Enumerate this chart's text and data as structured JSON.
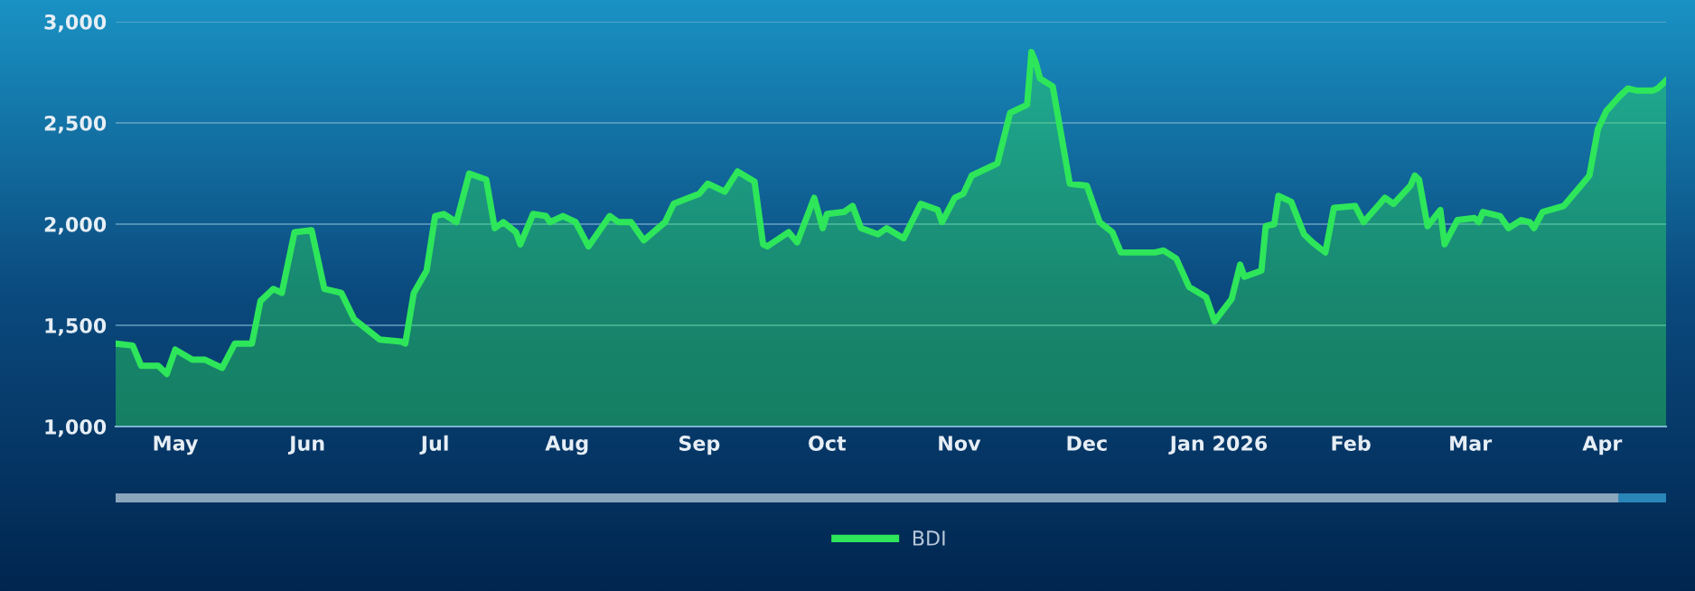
{
  "chart_data": {
    "type": "area",
    "x": [
      "2025-04-17",
      "2025-04-21",
      "2025-04-23",
      "2025-04-27",
      "2025-04-29",
      "2025-05-01",
      "2025-05-05",
      "2025-05-08",
      "2025-05-12",
      "2025-05-15",
      "2025-05-19",
      "2025-05-21",
      "2025-05-24",
      "2025-05-26",
      "2025-05-29",
      "2025-06-02",
      "2025-06-05",
      "2025-06-09",
      "2025-06-12",
      "2025-06-15",
      "2025-06-18",
      "2025-06-23",
      "2025-06-24",
      "2025-06-26",
      "2025-06-29",
      "2025-07-01",
      "2025-07-03",
      "2025-07-06",
      "2025-07-09",
      "2025-07-13",
      "2025-07-15",
      "2025-07-17",
      "2025-07-20",
      "2025-07-21",
      "2025-07-24",
      "2025-07-27",
      "2025-07-28",
      "2025-07-31",
      "2025-08-03",
      "2025-08-06",
      "2025-08-11",
      "2025-08-13",
      "2025-08-16",
      "2025-08-19",
      "2025-08-24",
      "2025-08-26",
      "2025-09-01",
      "2025-09-03",
      "2025-09-07",
      "2025-09-10",
      "2025-09-14",
      "2025-09-16",
      "2025-09-17",
      "2025-09-22",
      "2025-09-24",
      "2025-09-28",
      "2025-09-30",
      "2025-10-01",
      "2025-10-05",
      "2025-10-07",
      "2025-10-09",
      "2025-10-13",
      "2025-10-15",
      "2025-10-19",
      "2025-10-23",
      "2025-10-27",
      "2025-10-28",
      "2025-10-31",
      "2025-11-02",
      "2025-11-04",
      "2025-11-10",
      "2025-11-13",
      "2025-11-17",
      "2025-11-18",
      "2025-11-19",
      "2025-11-20",
      "2025-11-23",
      "2025-11-27",
      "2025-12-01",
      "2025-12-04",
      "2025-12-07",
      "2025-12-09",
      "2025-12-17",
      "2025-12-19",
      "2025-12-22",
      "2025-12-25",
      "2025-12-29",
      "2025-12-31",
      "2026-01-04",
      "2026-01-06",
      "2026-01-07",
      "2026-01-11",
      "2026-01-12",
      "2026-01-14",
      "2026-01-15",
      "2026-01-18",
      "2026-01-21",
      "2026-01-23",
      "2026-01-26",
      "2026-01-28",
      "2026-02-02",
      "2026-02-04",
      "2026-02-09",
      "2026-02-11",
      "2026-02-15",
      "2026-02-16",
      "2026-02-17",
      "2026-02-19",
      "2026-02-22",
      "2026-02-23",
      "2026-02-26",
      "2026-03-02",
      "2026-03-03",
      "2026-03-04",
      "2026-03-08",
      "2026-03-10",
      "2026-03-13",
      "2026-03-15",
      "2026-03-16",
      "2026-03-18",
      "2026-03-23",
      "2026-03-27",
      "2026-03-29",
      "2026-03-31",
      "2026-04-02",
      "2026-04-05",
      "2026-04-07",
      "2026-04-09",
      "2026-04-13",
      "2026-04-14",
      "2026-04-16"
    ],
    "series": [
      {
        "name": "BDI",
        "color": "#2ee65a",
        "values": [
          1410,
          1400,
          1300,
          1300,
          1260,
          1380,
          1330,
          1330,
          1290,
          1410,
          1410,
          1620,
          1680,
          1660,
          1960,
          1970,
          1680,
          1660,
          1530,
          1480,
          1430,
          1420,
          1410,
          1660,
          1770,
          2040,
          2050,
          2010,
          2250,
          2220,
          1980,
          2010,
          1960,
          1900,
          2050,
          2040,
          2010,
          2040,
          2010,
          1890,
          2040,
          2010,
          2010,
          1920,
          2010,
          2100,
          2150,
          2200,
          2160,
          2260,
          2210,
          1900,
          1890,
          1960,
          1910,
          2130,
          1980,
          2050,
          2060,
          2090,
          1980,
          1950,
          1980,
          1930,
          2100,
          2070,
          2010,
          2130,
          2150,
          2240,
          2300,
          2550,
          2590,
          2850,
          2800,
          2720,
          2680,
          2200,
          2190,
          2010,
          1960,
          1860,
          1860,
          1870,
          1830,
          1690,
          1640,
          1520,
          1630,
          1800,
          1740,
          1770,
          1990,
          2000,
          2140,
          2110,
          1950,
          1910,
          1860,
          2080,
          2090,
          2010,
          2130,
          2100,
          2190,
          2240,
          2220,
          1990,
          2070,
          1900,
          2020,
          2030,
          2010,
          2060,
          2040,
          1980,
          2020,
          2010,
          1980,
          2060,
          2090,
          2190,
          2240,
          2470,
          2560,
          2630,
          2670,
          2660,
          2660,
          2670,
          2710
        ]
      }
    ],
    "xlim": [
      "2025-04-17",
      "2026-04-16"
    ],
    "xticks": [
      {
        "value": "2025-05-01",
        "label": "May"
      },
      {
        "value": "2025-06-01",
        "label": "Jun"
      },
      {
        "value": "2025-07-01",
        "label": "Jul"
      },
      {
        "value": "2025-08-01",
        "label": "Aug"
      },
      {
        "value": "2025-09-01",
        "label": "Sep"
      },
      {
        "value": "2025-10-01",
        "label": "Oct"
      },
      {
        "value": "2025-11-01",
        "label": "Nov"
      },
      {
        "value": "2025-12-01",
        "label": "Dec"
      },
      {
        "value": "2026-01-01",
        "label": "Jan 2026"
      },
      {
        "value": "2026-02-01",
        "label": "Feb"
      },
      {
        "value": "2026-03-01",
        "label": "Mar"
      },
      {
        "value": "2026-04-01",
        "label": "Apr"
      }
    ],
    "ylim": [
      1000,
      3000
    ],
    "yticks": [
      {
        "value": 1000,
        "label": "1,000"
      },
      {
        "value": 1500,
        "label": "1,500"
      },
      {
        "value": 2000,
        "label": "2,000"
      },
      {
        "value": 2500,
        "label": "2,500"
      },
      {
        "value": 3000,
        "label": "3,000"
      }
    ],
    "grid": "y",
    "legend": "bottom",
    "marker": "none",
    "line_style": "solid"
  }
}
